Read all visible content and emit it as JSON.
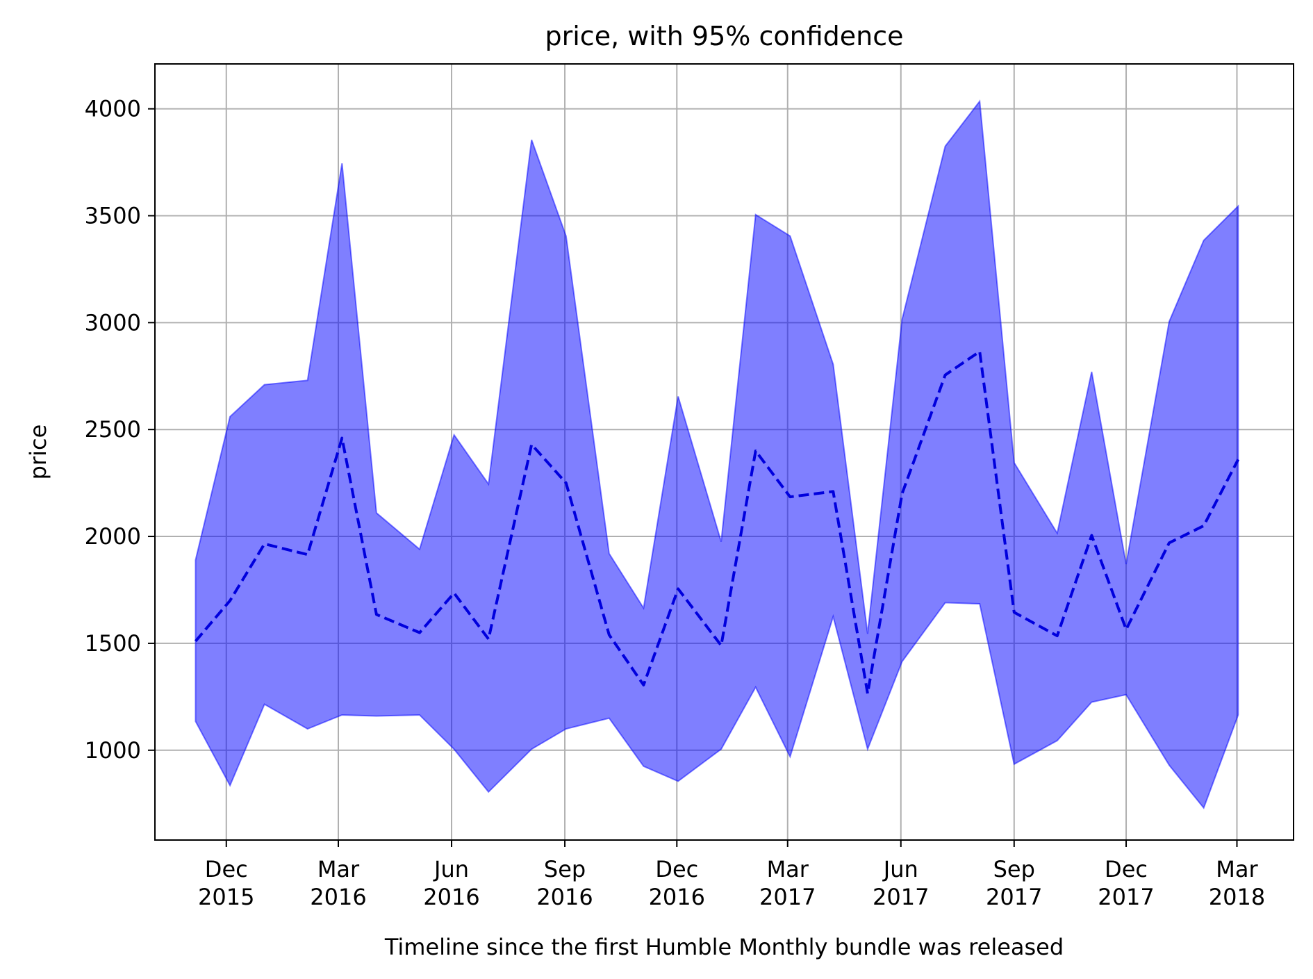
{
  "chart_data": {
    "type": "area",
    "title": "price, with 95% confidence",
    "xlabel": "Timeline since the first Humble Monthly bundle was released",
    "ylabel": "price",
    "x_axis_type": "date",
    "xlim": [
      "2015-10-04",
      "2018-04-16"
    ],
    "ylim": [
      580,
      4210
    ],
    "grid": true,
    "legend": "none",
    "colors": {
      "band": "#0000ff",
      "mean": "#0000dd",
      "grid": "#b0b0b0"
    },
    "x_ticks": [
      {
        "date": "2015-12-01",
        "month": "Dec",
        "year": "2015"
      },
      {
        "date": "2016-03-01",
        "month": "Mar",
        "year": "2016"
      },
      {
        "date": "2016-06-01",
        "month": "Jun",
        "year": "2016"
      },
      {
        "date": "2016-09-01",
        "month": "Sep",
        "year": "2016"
      },
      {
        "date": "2016-12-01",
        "month": "Dec",
        "year": "2016"
      },
      {
        "date": "2017-03-01",
        "month": "Mar",
        "year": "2017"
      },
      {
        "date": "2017-06-01",
        "month": "Jun",
        "year": "2017"
      },
      {
        "date": "2017-09-01",
        "month": "Sep",
        "year": "2017"
      },
      {
        "date": "2017-12-01",
        "month": "Dec",
        "year": "2017"
      },
      {
        "date": "2018-03-01",
        "month": "Mar",
        "year": "2018"
      }
    ],
    "y_ticks": [
      1000,
      1500,
      2000,
      2500,
      3000,
      3500,
      4000
    ],
    "x": [
      "2015-11-06",
      "2015-12-04",
      "2016-01-01",
      "2016-02-05",
      "2016-03-04",
      "2016-04-01",
      "2016-05-06",
      "2016-06-03",
      "2016-07-01",
      "2016-08-05",
      "2016-09-02",
      "2016-10-07",
      "2016-11-04",
      "2016-12-02",
      "2017-01-06",
      "2017-02-03",
      "2017-03-03",
      "2017-04-07",
      "2017-05-05",
      "2017-06-02",
      "2017-07-07",
      "2017-08-04",
      "2017-09-01",
      "2017-10-06",
      "2017-11-03",
      "2017-12-01",
      "2018-01-05",
      "2018-02-02",
      "2018-03-02"
    ],
    "series": [
      {
        "values": [
          1510,
          1700,
          1965,
          1915,
          2460,
          1635,
          1550,
          1735,
          1520,
          2430,
          2250,
          1540,
          1305,
          1755,
          1490,
          2400,
          2185,
          2210,
          1265,
          2200,
          2755,
          2865,
          1645,
          1535,
          2005,
          1565,
          1970,
          2050,
          2360
        ]
      },
      {
        "values": [
          1135,
          835,
          1215,
          1100,
          1165,
          1160,
          1165,
          1005,
          805,
          1005,
          1100,
          1150,
          925,
          855,
          1005,
          1295,
          970,
          1625,
          1005,
          1415,
          1690,
          1685,
          935,
          1045,
          1225,
          1260,
          930,
          730,
          1165
        ]
      },
      {
        "values": [
          1890,
          2560,
          2710,
          2730,
          3745,
          2110,
          1940,
          2475,
          2245,
          3855,
          3405,
          1920,
          1665,
          2655,
          1975,
          3505,
          3405,
          2805,
          1545,
          3015,
          3825,
          4035,
          2345,
          2015,
          2770,
          1870,
          3005,
          3385,
          3545
        ]
      }
    ]
  }
}
